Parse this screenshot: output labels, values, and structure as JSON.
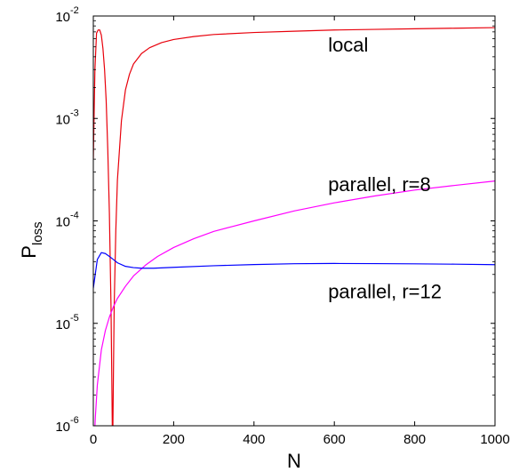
{
  "chart_data": {
    "type": "line",
    "title": "",
    "xlabel": "N",
    "ylabel": {
      "main": "P",
      "subscript": "loss"
    },
    "xlim": [
      0,
      1000
    ],
    "ylim": [
      1e-06,
      0.01
    ],
    "yscale": "log",
    "grid": false,
    "x_ticks": [
      0,
      200,
      400,
      600,
      800,
      1000
    ],
    "y_ticks": [
      {
        "value": 1e-06,
        "base": "10",
        "exponent": "-6"
      },
      {
        "value": 1e-05,
        "base": "10",
        "exponent": "-5"
      },
      {
        "value": 0.0001,
        "base": "10",
        "exponent": "-4"
      },
      {
        "value": 0.001,
        "base": "10",
        "exponent": "-3"
      },
      {
        "value": 0.01,
        "base": "10",
        "exponent": "-2"
      }
    ],
    "series": [
      {
        "name": "local",
        "color": "#e8000b",
        "x": [
          0,
          4,
          8,
          12,
          16,
          20,
          24,
          28,
          32,
          36,
          40,
          44,
          46,
          48,
          50,
          52,
          56,
          60,
          70,
          80,
          90,
          100,
          120,
          140,
          170,
          200,
          250,
          300,
          400,
          500,
          600,
          700,
          800,
          900,
          1000
        ],
        "y": [
          0.0004,
          0.003,
          0.0068,
          0.0073,
          0.0073,
          0.0065,
          0.0048,
          0.003,
          0.0015,
          0.0005,
          0.00012,
          1.5e-05,
          3e-06,
          5e-07,
          3e-06,
          1.5e-05,
          8e-05,
          0.00025,
          0.00095,
          0.0019,
          0.0027,
          0.0034,
          0.0043,
          0.0049,
          0.0055,
          0.0059,
          0.0063,
          0.0066,
          0.0069,
          0.0071,
          0.0073,
          0.0074,
          0.0075,
          0.0076,
          0.0077
        ]
      },
      {
        "name": "parallel, r=8",
        "color": "#ff00ff",
        "x": [
          0,
          5,
          10,
          20,
          30,
          40,
          50,
          60,
          80,
          100,
          130,
          160,
          200,
          250,
          300,
          400,
          500,
          600,
          700,
          800,
          900,
          1000
        ],
        "y": [
          1e-07,
          1.2e-06,
          2.5e-06,
          5.5e-06,
          8.5e-06,
          1.15e-05,
          1.45e-05,
          1.75e-05,
          2.3e-05,
          2.9e-05,
          3.7e-05,
          4.5e-05,
          5.5e-05,
          6.7e-05,
          7.9e-05,
          0.0001,
          0.000125,
          0.00015,
          0.000175,
          0.0002,
          0.000222,
          0.000245
        ]
      },
      {
        "name": "parallel, r=12",
        "color": "#0000ff",
        "x": [
          0,
          10,
          20,
          30,
          40,
          50,
          60,
          80,
          100,
          120,
          150,
          200,
          300,
          400,
          500,
          600,
          700,
          800,
          900,
          1000
        ],
        "y": [
          2.2e-05,
          4.2e-05,
          4.9e-05,
          4.8e-05,
          4.5e-05,
          4.2e-05,
          3.9e-05,
          3.6e-05,
          3.5e-05,
          3.45e-05,
          3.45e-05,
          3.52e-05,
          3.65e-05,
          3.75e-05,
          3.82e-05,
          3.84e-05,
          3.83e-05,
          3.81e-05,
          3.78e-05,
          3.74e-05
        ]
      }
    ],
    "annotations": [
      {
        "text": "local",
        "x": 600,
        "y": 0.0045
      },
      {
        "text": "parallel, r=8",
        "x": 600,
        "y": 0.000195
      },
      {
        "text": "parallel, r=12",
        "x": 600,
        "y": 1.75e-05
      }
    ]
  }
}
